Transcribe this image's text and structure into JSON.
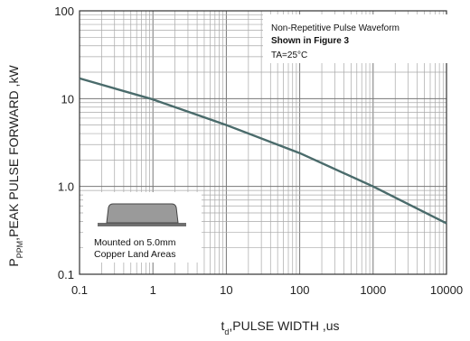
{
  "chart_data": {
    "type": "line",
    "x_scale": "log",
    "y_scale": "log",
    "xlim": [
      0.1,
      10000
    ],
    "ylim": [
      0.1,
      100
    ],
    "grid": true,
    "x_ticks": [
      "0.1",
      "1",
      "10",
      "100",
      "1000",
      "10000"
    ],
    "y_ticks": [
      "100",
      "10",
      "1.0",
      "0.1"
    ],
    "xlabel": {
      "sub": "d",
      "pre": "t",
      "post": ",PULSE WIDTH ,us"
    },
    "ylabel": {
      "pre": "P",
      "sub": "PPM",
      "post": ",PEAK PULSE  FORWARD ,kW"
    },
    "series": [
      {
        "color": "#4a6b6b",
        "x": [
          0.1,
          1,
          10,
          100,
          1000,
          10000
        ],
        "y": [
          17,
          9.8,
          5.0,
          2.4,
          1.0,
          0.38
        ]
      }
    ],
    "annotations": {
      "line1": "Non-Repetitive Pulse Waveform",
      "line2": "Shown in Figure 3",
      "line3": "TA=25°C"
    },
    "inset": {
      "line1": "Mounted on 5.0mm",
      "line2": "Copper Land Areas"
    }
  }
}
